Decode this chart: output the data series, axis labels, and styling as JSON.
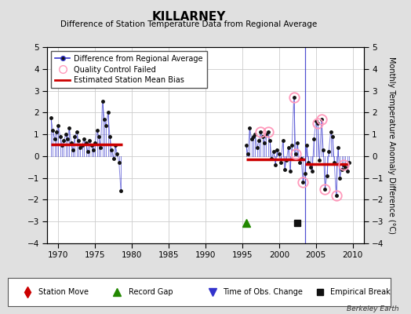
{
  "title": "KILLARNEY",
  "subtitle": "Difference of Station Temperature Data from Regional Average",
  "ylabel": "Monthly Temperature Anomaly Difference (°C)",
  "ylim": [
    -4,
    5
  ],
  "xlim": [
    1968.5,
    2011.5
  ],
  "yticks": [
    -4,
    -3,
    -2,
    -1,
    0,
    1,
    2,
    3,
    4,
    5
  ],
  "xticks": [
    1970,
    1975,
    1980,
    1985,
    1990,
    1995,
    2000,
    2005,
    2010
  ],
  "bg_color": "#e0e0e0",
  "plot_bg": "#ffffff",
  "segment1": {
    "x_start": 1969.0,
    "x_end": 1978.7,
    "bias": 0.55,
    "data_x": [
      1969.0,
      1969.25,
      1969.5,
      1969.75,
      1970.0,
      1970.25,
      1970.5,
      1970.75,
      1971.0,
      1971.25,
      1971.5,
      1971.75,
      1972.0,
      1972.25,
      1972.5,
      1972.75,
      1973.0,
      1973.25,
      1973.5,
      1973.75,
      1974.0,
      1974.25,
      1974.5,
      1974.75,
      1975.0,
      1975.25,
      1975.5,
      1975.75,
      1976.0,
      1976.25,
      1976.5,
      1976.75,
      1977.0,
      1977.25,
      1977.5,
      1977.75,
      1978.0,
      1978.25,
      1978.5
    ],
    "data_y": [
      1.75,
      1.2,
      0.8,
      1.1,
      1.4,
      0.9,
      0.5,
      0.7,
      1.0,
      0.8,
      1.3,
      0.6,
      0.3,
      0.9,
      1.1,
      0.7,
      0.4,
      0.5,
      0.8,
      0.6,
      0.2,
      0.7,
      0.5,
      0.3,
      0.6,
      1.2,
      0.9,
      0.4,
      2.5,
      1.7,
      1.4,
      2.0,
      0.9,
      0.3,
      -0.1,
      0.5,
      0.1,
      -0.3,
      -1.6
    ]
  },
  "segment2": {
    "x_start": 1995.5,
    "x_end": 2009.5,
    "bias1_start": 1995.5,
    "bias1_end": 2003.5,
    "bias1_val": -0.15,
    "bias2_start": 2003.5,
    "bias2_end": 2009.5,
    "bias2_val": -0.35,
    "data_x": [
      1995.5,
      1995.75,
      1996.0,
      1996.25,
      1996.5,
      1996.75,
      1997.0,
      1997.25,
      1997.5,
      1997.75,
      1998.0,
      1998.25,
      1998.5,
      1998.75,
      1999.0,
      1999.25,
      1999.5,
      1999.75,
      2000.0,
      2000.25,
      2000.5,
      2000.75,
      2001.0,
      2001.25,
      2001.5,
      2001.75,
      2002.0,
      2002.25,
      2002.5,
      2002.75,
      2003.0,
      2003.25,
      2003.5,
      2003.75,
      2004.0,
      2004.25,
      2004.5,
      2004.75,
      2005.0,
      2005.25,
      2005.5,
      2005.75,
      2006.0,
      2006.25,
      2006.5,
      2006.75,
      2007.0,
      2007.25,
      2007.5,
      2007.75,
      2008.0,
      2008.25,
      2008.5,
      2008.75,
      2009.0,
      2009.25,
      2009.5
    ],
    "data_y": [
      0.5,
      0.1,
      1.3,
      0.8,
      0.9,
      1.0,
      0.4,
      0.7,
      1.1,
      0.9,
      0.6,
      1.0,
      1.1,
      0.7,
      -0.1,
      0.2,
      -0.4,
      0.3,
      0.1,
      -0.3,
      0.7,
      -0.6,
      -0.2,
      0.4,
      -0.7,
      0.5,
      2.7,
      0.1,
      0.6,
      -0.3,
      -0.1,
      -1.2,
      -0.8,
      0.5,
      -0.3,
      -0.5,
      -0.7,
      0.8,
      1.6,
      1.5,
      -0.2,
      1.7,
      0.3,
      -1.5,
      -0.9,
      0.2,
      1.1,
      0.9,
      -0.3,
      -1.8,
      0.4,
      -1.0,
      -0.6,
      -0.4,
      -0.5,
      -0.7,
      -0.3
    ]
  },
  "qc_failed_x": [
    1997.5,
    1998.5,
    2002.0,
    2003.25,
    2005.25,
    2005.75,
    2006.25,
    2007.75,
    2008.75,
    2002.25
  ],
  "qc_failed_y": [
    1.1,
    1.1,
    2.7,
    -1.2,
    1.5,
    1.7,
    -1.5,
    -1.8,
    -0.4,
    0.1
  ],
  "record_gap_x": 1995.5,
  "record_gap_y": -3.05,
  "empirical_break_x": 2002.5,
  "empirical_break_y": -3.05,
  "time_obs_change_x": 2003.5,
  "line_color": "#3333cc",
  "bias_color": "#cc0000",
  "qc_color": "#ff99bb",
  "marker_color": "#111111"
}
